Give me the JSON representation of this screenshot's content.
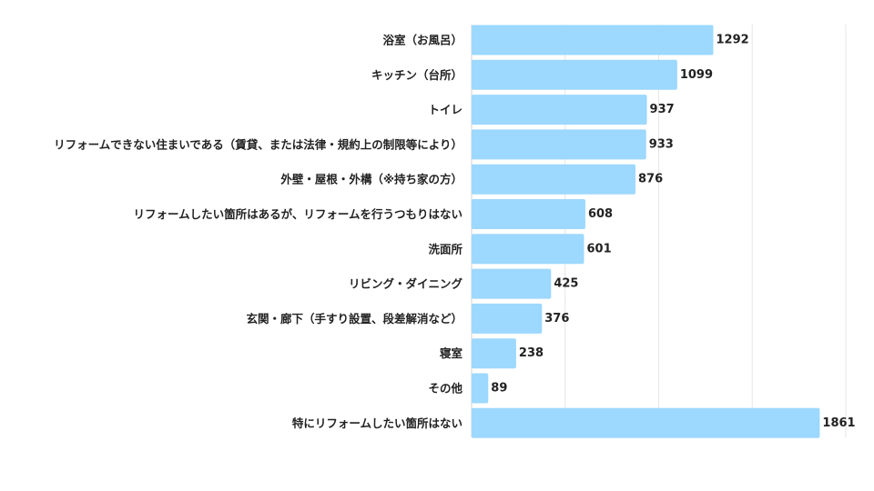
{
  "chart_data": {
    "type": "bar",
    "orientation": "horizontal",
    "categories": [
      "浴室（お風呂）",
      "キッチン（台所）",
      "トイレ",
      "リフォームできない住まいである（賃貸、または法律・規約上の制限等により）",
      "外壁・屋根・外構（※持ち家の方）",
      "リフォームしたい箇所はあるが、リフォームを行うつもりはない",
      "洗面所",
      "リビング・ダイニング",
      "玄関・廊下（手すり設置、段差解消など）",
      "寝室",
      "その他",
      "特にリフォームしたい箇所はない"
    ],
    "values": [
      1292,
      1099,
      937,
      933,
      876,
      608,
      601,
      425,
      376,
      238,
      89,
      1861
    ],
    "value_labels": [
      "1292",
      "1099",
      "937",
      "933",
      "876",
      "608",
      "601",
      "425",
      "376",
      "238",
      "89",
      "1861"
    ],
    "xlim": [
      0,
      2000
    ],
    "grid": true,
    "gridlines_at": [
      500,
      1000,
      1500,
      2000
    ],
    "bar_color": "#9dd8ff",
    "grid_color": "#e6e6e6",
    "axis_color": "#d2d2d2",
    "label_color": "#222222",
    "title": "",
    "xlabel": "",
    "ylabel": ""
  }
}
